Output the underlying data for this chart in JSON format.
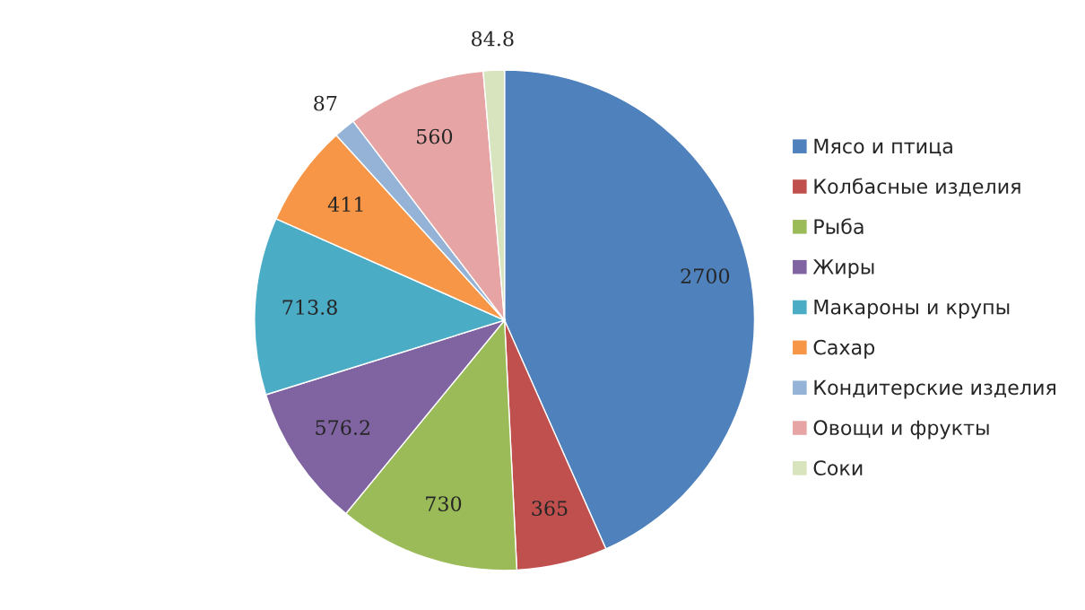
{
  "chart_data": {
    "type": "pie",
    "categories": [
      "Мясо и птица",
      "Колбасные изделия",
      "Рыба",
      "Жиры",
      "Макароны и крупы",
      "Сахар",
      "Кондитерские изделия",
      "Овощи и фрукты",
      "Соки"
    ],
    "values": [
      2700,
      365,
      730,
      576.2,
      713.8,
      411,
      87,
      560,
      84.8
    ],
    "colors": [
      "#4f81bd",
      "#c0504d",
      "#9bbb59",
      "#8064a2",
      "#4bacc6",
      "#f79646",
      "#95b3d7",
      "#e6a5a4",
      "#d7e4bd"
    ],
    "data_labels": true,
    "legend": "right"
  }
}
